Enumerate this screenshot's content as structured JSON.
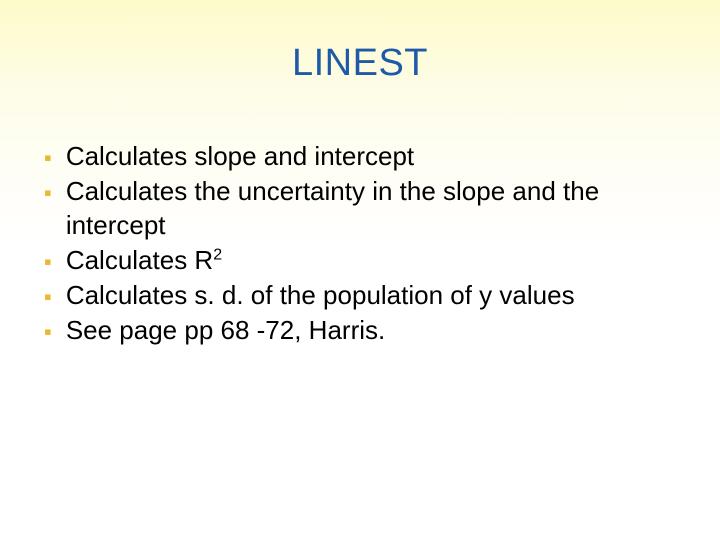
{
  "slide": {
    "title": "LINEST",
    "title_color": "#1f5aa8",
    "title_fontsize": 38,
    "bullet_color": "#e8b82e",
    "text_color": "#000000",
    "text_fontsize": 26,
    "background_gradient": [
      "#fdfbc9",
      "#fefdec",
      "#ffffff"
    ],
    "bullets": [
      {
        "text": "Calculates slope and intercept",
        "has_sup": false
      },
      {
        "text": "Calculates the uncertainty in the slope and the intercept",
        "has_sup": false
      },
      {
        "text": "Calculates R",
        "sup": "2",
        "has_sup": true
      },
      {
        "text": "Calculates s. d. of the population of y values",
        "has_sup": false
      },
      {
        "text": "See page pp 68 -72, Harris.",
        "has_sup": false
      }
    ]
  }
}
